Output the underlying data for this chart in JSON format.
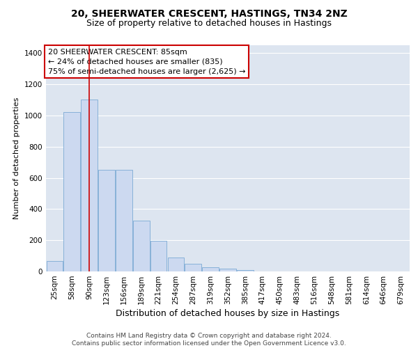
{
  "title": "20, SHEERWATER CRESCENT, HASTINGS, TN34 2NZ",
  "subtitle": "Size of property relative to detached houses in Hastings",
  "xlabel": "Distribution of detached houses by size in Hastings",
  "ylabel": "Number of detached properties",
  "bar_labels": [
    "25sqm",
    "58sqm",
    "90sqm",
    "123sqm",
    "156sqm",
    "189sqm",
    "221sqm",
    "254sqm",
    "287sqm",
    "319sqm",
    "352sqm",
    "385sqm",
    "417sqm",
    "450sqm",
    "483sqm",
    "516sqm",
    "548sqm",
    "581sqm",
    "614sqm",
    "646sqm",
    "679sqm"
  ],
  "bar_values": [
    65,
    1020,
    1100,
    650,
    650,
    325,
    195,
    90,
    50,
    25,
    20,
    10,
    0,
    0,
    0,
    0,
    0,
    0,
    0,
    0,
    0
  ],
  "bar_color": "#ccd9f0",
  "bar_edgecolor": "#7baad4",
  "vline_x": 2.0,
  "vline_color": "#cc0000",
  "annotation_text": "20 SHEERWATER CRESCENT: 85sqm\n← 24% of detached houses are smaller (835)\n75% of semi-detached houses are larger (2,625) →",
  "annotation_box_color": "#ffffff",
  "annotation_box_edgecolor": "#cc0000",
  "ylim": [
    0,
    1450
  ],
  "yticks": [
    0,
    200,
    400,
    600,
    800,
    1000,
    1200,
    1400
  ],
  "bg_color": "#dde5f0",
  "grid_color": "#ffffff",
  "footer_text": "Contains HM Land Registry data © Crown copyright and database right 2024.\nContains public sector information licensed under the Open Government Licence v3.0.",
  "title_fontsize": 10,
  "subtitle_fontsize": 9,
  "xlabel_fontsize": 9,
  "ylabel_fontsize": 8,
  "tick_fontsize": 7.5,
  "annotation_fontsize": 8,
  "footer_fontsize": 6.5
}
